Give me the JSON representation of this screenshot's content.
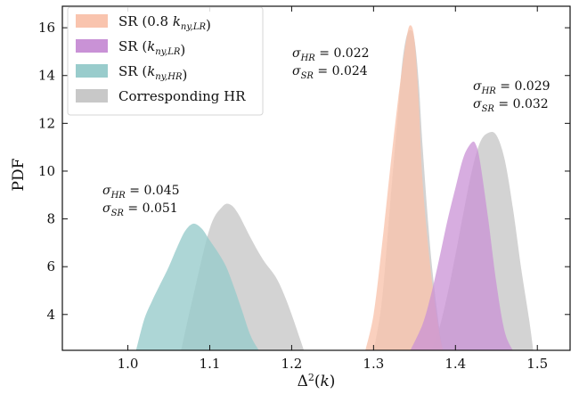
{
  "chart_data": {
    "type": "area",
    "xlabel": "Δ²(k)",
    "ylabel": "PDF",
    "xlim": [
      0.92,
      1.54
    ],
    "ylim": [
      2.5,
      16.9
    ],
    "x_ticks": [
      1.0,
      1.1,
      1.2,
      1.3,
      1.4,
      1.5
    ],
    "y_ticks": [
      4,
      6,
      8,
      10,
      12,
      14,
      16
    ],
    "x_tick_labels": [
      "1.0",
      "1.1",
      "1.2",
      "1.3",
      "1.4",
      "1.5"
    ],
    "y_tick_labels": [
      "4",
      "6",
      "8",
      "10",
      "12",
      "14",
      "16"
    ],
    "grid": false,
    "legend_position": "top-left",
    "legend": [
      {
        "label": "SR (0.8 k_{ny,LR})",
        "color": "#f9c4ae"
      },
      {
        "label": "SR (k_{ny,LR})",
        "color": "#c992d6"
      },
      {
        "label": "SR (k_{ny,HR})",
        "color": "#99cccc"
      },
      {
        "label": "Corresponding HR",
        "color": "#c8c8c8"
      }
    ],
    "series": [
      {
        "name": "Corresponding HR",
        "color": "#c8c8c8",
        "opacity": 0.8,
        "x": [
          1.065,
          1.08,
          1.1,
          1.115,
          1.125,
          1.135,
          1.15,
          1.165,
          1.18,
          1.19,
          1.2,
          1.21,
          1.215
        ],
        "y": [
          2.5,
          4.8,
          7.6,
          8.5,
          8.6,
          8.2,
          7.2,
          6.3,
          5.6,
          4.9,
          4.0,
          3.0,
          2.5
        ]
      },
      {
        "name": "Corresponding HR",
        "color": "#c8c8c8",
        "opacity": 0.8,
        "x": [
          1.3,
          1.31,
          1.32,
          1.33,
          1.335,
          1.34,
          1.345,
          1.35,
          1.355,
          1.36,
          1.37,
          1.38,
          1.385
        ],
        "y": [
          2.5,
          4.5,
          8.5,
          12.5,
          14.5,
          15.6,
          15.9,
          15.5,
          13.8,
          11.0,
          6.5,
          3.5,
          2.5
        ]
      },
      {
        "name": "Corresponding HR",
        "color": "#c8c8c8",
        "opacity": 0.8,
        "x": [
          1.37,
          1.38,
          1.39,
          1.4,
          1.41,
          1.42,
          1.43,
          1.44,
          1.45,
          1.46,
          1.47,
          1.48,
          1.49,
          1.495
        ],
        "y": [
          2.5,
          3.4,
          4.8,
          6.5,
          8.3,
          10.0,
          11.2,
          11.6,
          11.5,
          10.5,
          8.5,
          6.0,
          3.8,
          2.5
        ]
      },
      {
        "name": "SR (0.8 k_{ny,LR})",
        "color": "#f9c4ae",
        "opacity": 0.8,
        "x": [
          1.29,
          1.3,
          1.31,
          1.32,
          1.33,
          1.34,
          1.345,
          1.35,
          1.355,
          1.36,
          1.37,
          1.38,
          1.385
        ],
        "y": [
          2.5,
          4.0,
          6.8,
          10.0,
          13.0,
          15.5,
          16.1,
          15.5,
          13.0,
          9.5,
          5.8,
          3.3,
          2.5
        ]
      },
      {
        "name": "SR (k_{ny,LR})",
        "color": "#c992d6",
        "opacity": 0.75,
        "x": [
          1.345,
          1.36,
          1.37,
          1.38,
          1.39,
          1.4,
          1.41,
          1.42,
          1.425,
          1.43,
          1.44,
          1.45,
          1.46,
          1.47
        ],
        "y": [
          2.5,
          3.6,
          4.8,
          6.3,
          7.9,
          9.3,
          10.6,
          11.2,
          11.1,
          10.4,
          8.0,
          5.3,
          3.3,
          2.5
        ]
      },
      {
        "name": "SR (k_{ny,HR})",
        "color": "#99cccc",
        "opacity": 0.8,
        "x": [
          1.01,
          1.02,
          1.03,
          1.04,
          1.05,
          1.06,
          1.07,
          1.08,
          1.09,
          1.1,
          1.11,
          1.12,
          1.13,
          1.14,
          1.15,
          1.16
        ],
        "y": [
          2.5,
          3.8,
          4.6,
          5.3,
          6.0,
          6.8,
          7.5,
          7.8,
          7.6,
          7.1,
          6.6,
          6.0,
          5.1,
          4.1,
          3.1,
          2.5
        ]
      }
    ],
    "annotations": [
      {
        "id": "hr-left",
        "text": "σ_HR = 0.045"
      },
      {
        "id": "sr-left",
        "text": "σ_SR = 0.051"
      },
      {
        "id": "hr-mid",
        "text": "σ_HR = 0.022"
      },
      {
        "id": "sr-mid",
        "text": "σ_SR = 0.024"
      },
      {
        "id": "hr-right",
        "text": "σ_HR = 0.029"
      },
      {
        "id": "sr-right",
        "text": "σ_SR = 0.032"
      }
    ]
  }
}
